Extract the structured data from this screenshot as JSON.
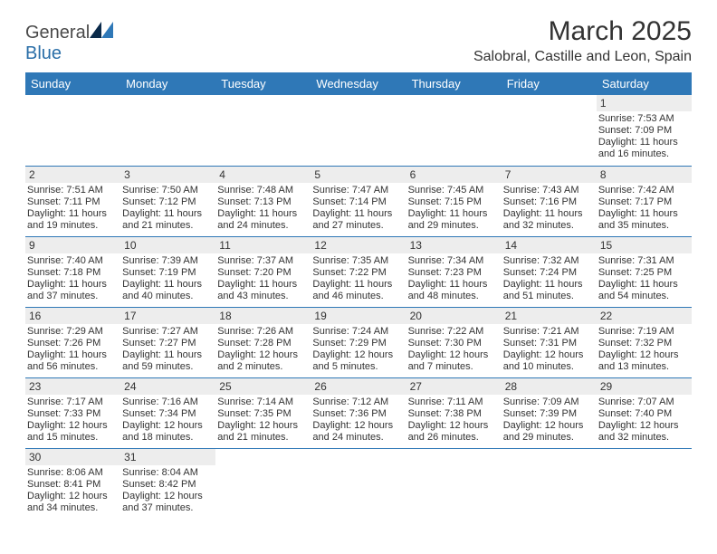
{
  "logo": {
    "word1": "General",
    "word2": "Blue"
  },
  "title": "March 2025",
  "location": "Salobral, Castille and Leon, Spain",
  "colors": {
    "header_bg": "#2f78b7",
    "header_fg": "#ffffff",
    "grid_border": "#2f78b7",
    "daynum_bg": "#ededed",
    "text": "#333333",
    "logo_blue": "#2b6fa8",
    "triangle_dark": "#0a2a4a",
    "triangle_light": "#2f78b7"
  },
  "weekdays": [
    "Sunday",
    "Monday",
    "Tuesday",
    "Wednesday",
    "Thursday",
    "Friday",
    "Saturday"
  ],
  "grid": [
    [
      null,
      null,
      null,
      null,
      null,
      null,
      {
        "n": "1",
        "sr": "7:53 AM",
        "ss": "7:09 PM",
        "dl": "11 hours and 16 minutes."
      }
    ],
    [
      {
        "n": "2",
        "sr": "7:51 AM",
        "ss": "7:11 PM",
        "dl": "11 hours and 19 minutes."
      },
      {
        "n": "3",
        "sr": "7:50 AM",
        "ss": "7:12 PM",
        "dl": "11 hours and 21 minutes."
      },
      {
        "n": "4",
        "sr": "7:48 AM",
        "ss": "7:13 PM",
        "dl": "11 hours and 24 minutes."
      },
      {
        "n": "5",
        "sr": "7:47 AM",
        "ss": "7:14 PM",
        "dl": "11 hours and 27 minutes."
      },
      {
        "n": "6",
        "sr": "7:45 AM",
        "ss": "7:15 PM",
        "dl": "11 hours and 29 minutes."
      },
      {
        "n": "7",
        "sr": "7:43 AM",
        "ss": "7:16 PM",
        "dl": "11 hours and 32 minutes."
      },
      {
        "n": "8",
        "sr": "7:42 AM",
        "ss": "7:17 PM",
        "dl": "11 hours and 35 minutes."
      }
    ],
    [
      {
        "n": "9",
        "sr": "7:40 AM",
        "ss": "7:18 PM",
        "dl": "11 hours and 37 minutes."
      },
      {
        "n": "10",
        "sr": "7:39 AM",
        "ss": "7:19 PM",
        "dl": "11 hours and 40 minutes."
      },
      {
        "n": "11",
        "sr": "7:37 AM",
        "ss": "7:20 PM",
        "dl": "11 hours and 43 minutes."
      },
      {
        "n": "12",
        "sr": "7:35 AM",
        "ss": "7:22 PM",
        "dl": "11 hours and 46 minutes."
      },
      {
        "n": "13",
        "sr": "7:34 AM",
        "ss": "7:23 PM",
        "dl": "11 hours and 48 minutes."
      },
      {
        "n": "14",
        "sr": "7:32 AM",
        "ss": "7:24 PM",
        "dl": "11 hours and 51 minutes."
      },
      {
        "n": "15",
        "sr": "7:31 AM",
        "ss": "7:25 PM",
        "dl": "11 hours and 54 minutes."
      }
    ],
    [
      {
        "n": "16",
        "sr": "7:29 AM",
        "ss": "7:26 PM",
        "dl": "11 hours and 56 minutes."
      },
      {
        "n": "17",
        "sr": "7:27 AM",
        "ss": "7:27 PM",
        "dl": "11 hours and 59 minutes."
      },
      {
        "n": "18",
        "sr": "7:26 AM",
        "ss": "7:28 PM",
        "dl": "12 hours and 2 minutes."
      },
      {
        "n": "19",
        "sr": "7:24 AM",
        "ss": "7:29 PM",
        "dl": "12 hours and 5 minutes."
      },
      {
        "n": "20",
        "sr": "7:22 AM",
        "ss": "7:30 PM",
        "dl": "12 hours and 7 minutes."
      },
      {
        "n": "21",
        "sr": "7:21 AM",
        "ss": "7:31 PM",
        "dl": "12 hours and 10 minutes."
      },
      {
        "n": "22",
        "sr": "7:19 AM",
        "ss": "7:32 PM",
        "dl": "12 hours and 13 minutes."
      }
    ],
    [
      {
        "n": "23",
        "sr": "7:17 AM",
        "ss": "7:33 PM",
        "dl": "12 hours and 15 minutes."
      },
      {
        "n": "24",
        "sr": "7:16 AM",
        "ss": "7:34 PM",
        "dl": "12 hours and 18 minutes."
      },
      {
        "n": "25",
        "sr": "7:14 AM",
        "ss": "7:35 PM",
        "dl": "12 hours and 21 minutes."
      },
      {
        "n": "26",
        "sr": "7:12 AM",
        "ss": "7:36 PM",
        "dl": "12 hours and 24 minutes."
      },
      {
        "n": "27",
        "sr": "7:11 AM",
        "ss": "7:38 PM",
        "dl": "12 hours and 26 minutes."
      },
      {
        "n": "28",
        "sr": "7:09 AM",
        "ss": "7:39 PM",
        "dl": "12 hours and 29 minutes."
      },
      {
        "n": "29",
        "sr": "7:07 AM",
        "ss": "7:40 PM",
        "dl": "12 hours and 32 minutes."
      }
    ],
    [
      {
        "n": "30",
        "sr": "8:06 AM",
        "ss": "8:41 PM",
        "dl": "12 hours and 34 minutes."
      },
      {
        "n": "31",
        "sr": "8:04 AM",
        "ss": "8:42 PM",
        "dl": "12 hours and 37 minutes."
      },
      null,
      null,
      null,
      null,
      null
    ]
  ],
  "labels": {
    "sunrise": "Sunrise:",
    "sunset": "Sunset:",
    "daylight": "Daylight:"
  }
}
